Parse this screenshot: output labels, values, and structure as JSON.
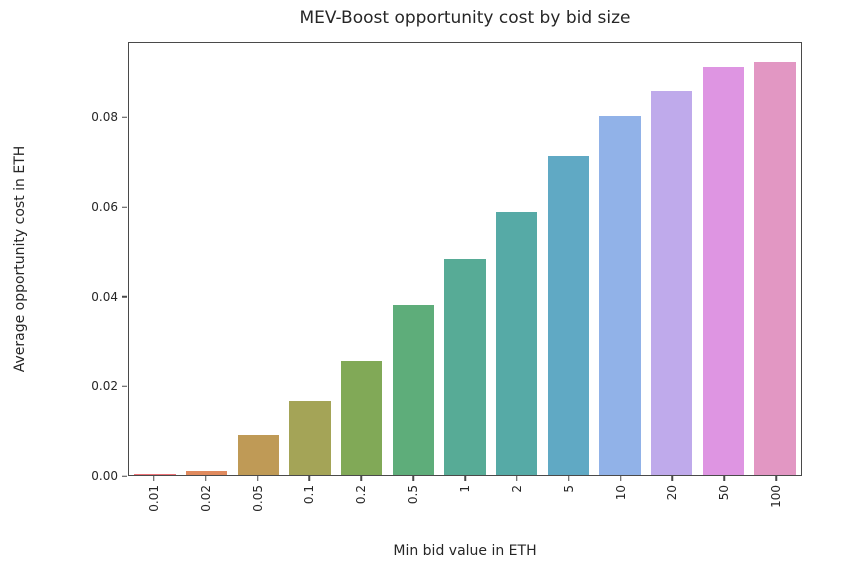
{
  "figure": {
    "background_color": "#ffffff",
    "text_color": "#262626",
    "spine_color": "#4a4a4a"
  },
  "chart_data": {
    "type": "bar",
    "title": "MEV-Boost opportunity cost by bid size",
    "xlabel": "Min bid value in ETH",
    "ylabel": "Average opportunity cost in ETH",
    "categories": [
      "0.01",
      "0.02",
      "0.05",
      "0.1",
      "0.2",
      "0.5",
      "1",
      "2",
      "5",
      "10",
      "20",
      "50",
      "100"
    ],
    "values": [
      0.0002,
      0.001,
      0.009,
      0.0165,
      0.0255,
      0.038,
      0.0485,
      0.059,
      0.0715,
      0.0805,
      0.086,
      0.0915,
      0.0925
    ],
    "bar_colors": [
      "#ec7176",
      "#e08a5e",
      "#bf9a56",
      "#a4a457",
      "#81a957",
      "#5ead7a",
      "#57ab96",
      "#56aaa6",
      "#60a9c4",
      "#91b2e8",
      "#bfaaeb",
      "#de95e2",
      "#e297c3"
    ],
    "ylim": [
      0,
      0.0968
    ],
    "yticks": [
      0.0,
      0.02,
      0.04,
      0.06,
      0.08
    ],
    "ytick_labels": [
      "0.00",
      "0.02",
      "0.04",
      "0.06",
      "0.08"
    ],
    "xtick_rotation": 90,
    "bar_slot_fraction": 0.8,
    "grid": false,
    "legend": null
  }
}
